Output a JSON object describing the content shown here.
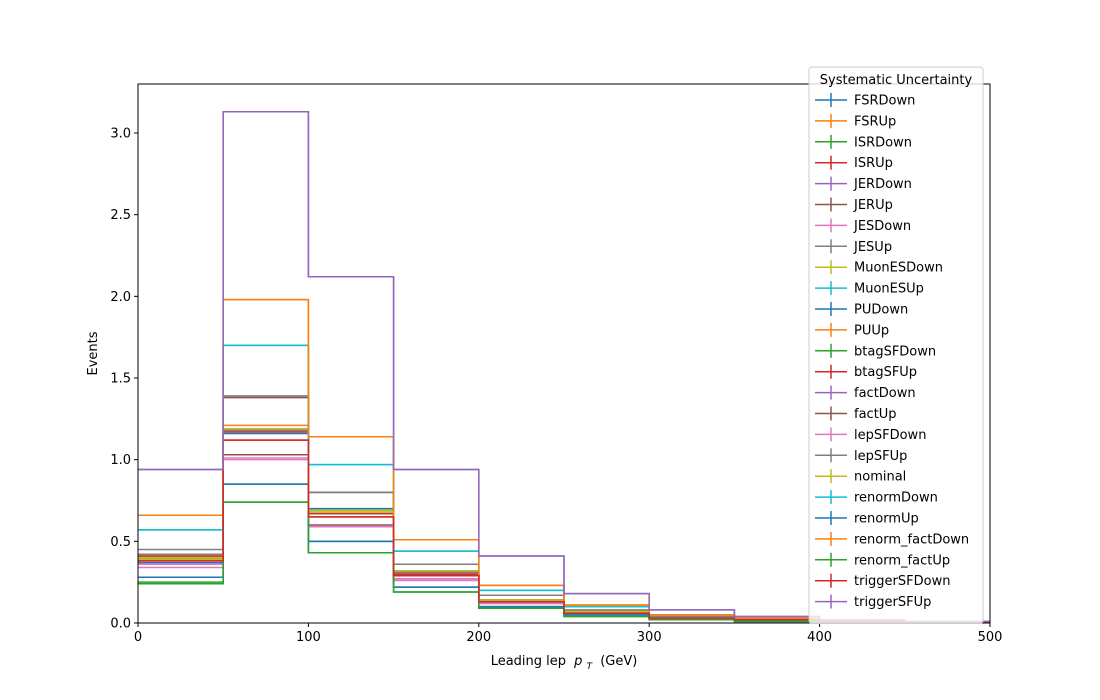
{
  "chart_data": {
    "type": "step-histogram",
    "xlabel": "Leading lep",
    "xlabel_var_main": "p",
    "xlabel_var_sub": "T",
    "xlabel_unit": "(GeV)",
    "ylabel": "Events",
    "xlim": [
      0,
      500
    ],
    "ylim": [
      0,
      3.3
    ],
    "bin_edges": [
      0,
      50,
      100,
      150,
      200,
      250,
      300,
      350,
      400,
      450,
      500
    ],
    "x_ticks": [
      0,
      100,
      200,
      300,
      400,
      500
    ],
    "x_tick_labels": [
      "0",
      "100",
      "200",
      "300",
      "400",
      "500"
    ],
    "y_ticks": [
      0,
      0.5,
      1.0,
      1.5,
      2.0,
      2.5,
      3.0
    ],
    "y_tick_labels": [
      "0.0",
      "0.5",
      "1.0",
      "1.5",
      "2.0",
      "2.5",
      "3.0"
    ],
    "grid": false,
    "legend": {
      "title": "Systematic Uncertainty",
      "placement": "upper-right"
    },
    "series": [
      {
        "name": "FSRDown",
        "color": "#1f77b4",
        "values": [
          0.37,
          1.16,
          0.7,
          0.3,
          0.14,
          0.07,
          0.03,
          0.02,
          0.01,
          0.005
        ]
      },
      {
        "name": "FSRUp",
        "color": "#ff7f0e",
        "values": [
          0.4,
          1.21,
          0.69,
          0.32,
          0.14,
          0.07,
          0.03,
          0.02,
          0.01,
          0.005
        ]
      },
      {
        "name": "ISRDown",
        "color": "#2ca02c",
        "values": [
          0.4,
          1.18,
          0.67,
          0.32,
          0.13,
          0.07,
          0.03,
          0.02,
          0.01,
          0.005
        ]
      },
      {
        "name": "ISRUp",
        "color": "#d62728",
        "values": [
          0.38,
          1.17,
          0.67,
          0.3,
          0.14,
          0.07,
          0.03,
          0.02,
          0.01,
          0.005
        ]
      },
      {
        "name": "JERDown",
        "color": "#9467bd",
        "values": [
          0.4,
          1.39,
          0.8,
          0.29,
          0.14,
          0.07,
          0.03,
          0.02,
          0.01,
          0.005
        ]
      },
      {
        "name": "JERUp",
        "color": "#8c564b",
        "values": [
          0.4,
          1.38,
          0.8,
          0.29,
          0.14,
          0.07,
          0.03,
          0.02,
          0.01,
          0.005
        ]
      },
      {
        "name": "JESDown",
        "color": "#e377c2",
        "values": [
          0.34,
          1.0,
          0.59,
          0.26,
          0.12,
          0.06,
          0.03,
          0.02,
          0.01,
          0.005
        ]
      },
      {
        "name": "JESUp",
        "color": "#7f7f7f",
        "values": [
          0.45,
          1.39,
          0.8,
          0.36,
          0.17,
          0.08,
          0.04,
          0.02,
          0.01,
          0.005
        ]
      },
      {
        "name": "MuonESDown",
        "color": "#bcbd22",
        "values": [
          0.4,
          1.18,
          0.68,
          0.31,
          0.14,
          0.07,
          0.03,
          0.02,
          0.01,
          0.005
        ]
      },
      {
        "name": "MuonESUp",
        "color": "#17becf",
        "values": [
          0.57,
          1.7,
          0.97,
          0.44,
          0.2,
          0.1,
          0.05,
          0.03,
          0.01,
          0.005
        ]
      },
      {
        "name": "PUDown",
        "color": "#1f77b4",
        "values": [
          0.28,
          0.85,
          0.5,
          0.22,
          0.1,
          0.05,
          0.02,
          0.01,
          0.01,
          0.004
        ]
      },
      {
        "name": "PUUp",
        "color": "#ff7f0e",
        "values": [
          0.66,
          1.98,
          1.14,
          0.51,
          0.23,
          0.11,
          0.05,
          0.03,
          0.01,
          0.006
        ]
      },
      {
        "name": "btagSFDown",
        "color": "#2ca02c",
        "values": [
          0.25,
          0.74,
          0.43,
          0.19,
          0.09,
          0.04,
          0.02,
          0.01,
          0.005,
          0.004
        ]
      },
      {
        "name": "btagSFUp",
        "color": "#d62728",
        "values": [
          0.41,
          1.12,
          0.65,
          0.29,
          0.13,
          0.06,
          0.03,
          0.02,
          0.01,
          0.005
        ]
      },
      {
        "name": "factDown",
        "color": "#9467bd",
        "values": [
          0.94,
          3.13,
          2.12,
          0.94,
          0.41,
          0.18,
          0.08,
          0.04,
          0.02,
          0.01
        ]
      },
      {
        "name": "factUp",
        "color": "#8c564b",
        "values": [
          0.42,
          1.03,
          0.6,
          0.27,
          0.12,
          0.06,
          0.03,
          0.02,
          0.01,
          0.005
        ]
      },
      {
        "name": "lepSFDown",
        "color": "#e377c2",
        "values": [
          0.36,
          1.01,
          0.59,
          0.27,
          0.12,
          0.06,
          0.03,
          0.02,
          0.01,
          0.005
        ]
      },
      {
        "name": "lepSFUp",
        "color": "#7f7f7f",
        "values": [
          0.42,
          1.18,
          0.69,
          0.31,
          0.14,
          0.07,
          0.03,
          0.02,
          0.01,
          0.005
        ]
      },
      {
        "name": "nominal",
        "color": "#bcbd22",
        "values": [
          0.39,
          1.19,
          0.69,
          0.32,
          0.14,
          0.07,
          0.03,
          0.02,
          0.01,
          0.005
        ]
      },
      {
        "name": "renormDown",
        "color": "#17becf",
        "values": [
          0.57,
          1.7,
          0.97,
          0.44,
          0.2,
          0.1,
          0.05,
          0.03,
          0.01,
          0.005
        ]
      },
      {
        "name": "renormUp",
        "color": "#1f77b4",
        "values": [
          0.28,
          0.85,
          0.5,
          0.22,
          0.1,
          0.05,
          0.02,
          0.01,
          0.01,
          0.004
        ]
      },
      {
        "name": "renorm_factDown",
        "color": "#ff7f0e",
        "values": [
          0.66,
          1.98,
          1.14,
          0.51,
          0.23,
          0.11,
          0.05,
          0.03,
          0.01,
          0.006
        ]
      },
      {
        "name": "renorm_factUp",
        "color": "#2ca02c",
        "values": [
          0.24,
          0.74,
          0.43,
          0.19,
          0.09,
          0.04,
          0.02,
          0.01,
          0.005,
          0.004
        ]
      },
      {
        "name": "triggerSFDown",
        "color": "#d62728",
        "values": [
          0.38,
          1.12,
          0.65,
          0.29,
          0.13,
          0.06,
          0.03,
          0.02,
          0.01,
          0.005
        ]
      },
      {
        "name": "triggerSFUp",
        "color": "#9467bd",
        "values": [
          0.94,
          3.13,
          2.12,
          0.94,
          0.41,
          0.18,
          0.08,
          0.04,
          0.02,
          0.01
        ]
      }
    ]
  }
}
